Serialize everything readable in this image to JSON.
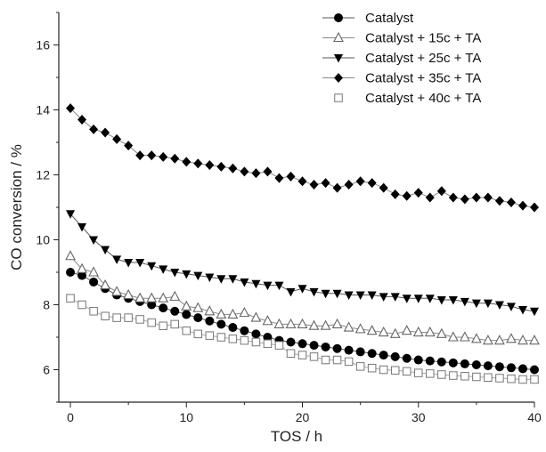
{
  "chart_data": {
    "type": "line",
    "xlabel": "TOS / h",
    "ylabel": "CO conversion / %",
    "xlim": [
      -1,
      40
    ],
    "ylim": [
      5,
      17
    ],
    "xticks": [
      0,
      10,
      20,
      30,
      40
    ],
    "yticks": [
      6,
      8,
      10,
      12,
      14,
      16
    ],
    "grid": false,
    "legend_position": "top-right",
    "x": [
      0,
      1,
      2,
      3,
      4,
      5,
      6,
      7,
      8,
      9,
      10,
      11,
      12,
      13,
      14,
      15,
      16,
      17,
      18,
      19,
      20,
      21,
      22,
      23,
      24,
      25,
      26,
      27,
      28,
      29,
      30,
      31,
      32,
      33,
      34,
      35,
      36,
      37,
      38,
      39,
      40
    ],
    "series": [
      {
        "name": "Catalyst",
        "marker": "circle-filled",
        "line_color": "#555555",
        "values": [
          9.0,
          8.9,
          8.7,
          8.5,
          8.3,
          8.2,
          8.1,
          8.0,
          7.9,
          7.8,
          7.7,
          7.6,
          7.5,
          7.4,
          7.3,
          7.2,
          7.1,
          7.0,
          6.9,
          6.85,
          6.8,
          6.75,
          6.7,
          6.65,
          6.6,
          6.55,
          6.5,
          6.45,
          6.4,
          6.35,
          6.3,
          6.27,
          6.24,
          6.21,
          6.18,
          6.15,
          6.12,
          6.09,
          6.06,
          6.03,
          6.0
        ]
      },
      {
        "name": "Catalyst + 15c + TA",
        "marker": "triangle-open",
        "line_color": "#888888",
        "values": [
          9.5,
          9.1,
          9.0,
          8.6,
          8.4,
          8.3,
          8.2,
          8.2,
          8.2,
          8.25,
          7.95,
          7.9,
          7.8,
          7.7,
          7.7,
          7.75,
          7.6,
          7.5,
          7.4,
          7.4,
          7.4,
          7.35,
          7.35,
          7.4,
          7.3,
          7.25,
          7.2,
          7.15,
          7.1,
          7.2,
          7.15,
          7.15,
          7.1,
          7.0,
          7.0,
          6.95,
          6.9,
          6.9,
          6.95,
          6.9,
          6.9
        ]
      },
      {
        "name": "Catalyst + 25c + TA",
        "marker": "triangle-down-filled",
        "line_color": "#555555",
        "values": [
          10.8,
          10.4,
          10.0,
          9.7,
          9.4,
          9.3,
          9.3,
          9.2,
          9.1,
          9.0,
          8.95,
          8.9,
          8.85,
          8.8,
          8.8,
          8.7,
          8.65,
          8.6,
          8.6,
          8.4,
          8.5,
          8.4,
          8.35,
          8.35,
          8.3,
          8.3,
          8.3,
          8.25,
          8.25,
          8.2,
          8.2,
          8.2,
          8.15,
          8.15,
          8.1,
          8.05,
          8.05,
          8.0,
          7.95,
          7.85,
          7.8
        ]
      },
      {
        "name": "Catalyst + 35c + TA",
        "marker": "diamond-filled",
        "line_color": "#888888",
        "values": [
          14.05,
          13.7,
          13.4,
          13.3,
          13.1,
          12.9,
          12.6,
          12.6,
          12.55,
          12.5,
          12.4,
          12.35,
          12.3,
          12.25,
          12.2,
          12.1,
          12.05,
          12.1,
          11.9,
          11.95,
          11.8,
          11.7,
          11.75,
          11.6,
          11.7,
          11.8,
          11.75,
          11.6,
          11.4,
          11.35,
          11.45,
          11.3,
          11.5,
          11.3,
          11.25,
          11.3,
          11.3,
          11.2,
          11.15,
          11.05,
          11.0
        ]
      },
      {
        "name": "Catalyst + 40c + TA",
        "marker": "square-open",
        "line_color": "#aaaaaa",
        "values": [
          8.2,
          8.0,
          7.8,
          7.65,
          7.6,
          7.6,
          7.55,
          7.45,
          7.35,
          7.4,
          7.2,
          7.1,
          7.05,
          7.0,
          6.95,
          6.9,
          6.85,
          6.8,
          6.75,
          6.5,
          6.45,
          6.4,
          6.3,
          6.3,
          6.25,
          6.1,
          6.05,
          6.0,
          5.98,
          5.95,
          5.9,
          5.88,
          5.85,
          5.82,
          5.8,
          5.78,
          5.76,
          5.74,
          5.72,
          5.7,
          5.7
        ]
      }
    ]
  }
}
